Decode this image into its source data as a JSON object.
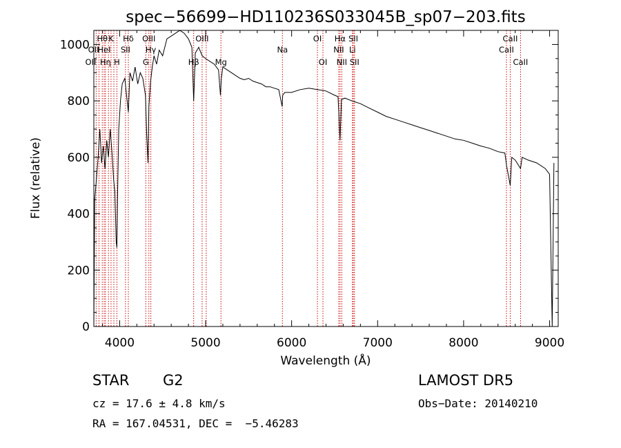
{
  "chart_data": {
    "type": "line",
    "title": "spec−56699−HD110236S033045B_sp07−203.fits",
    "xlabel": "Wavelength (Å)",
    "ylabel": "Flux (relative)",
    "xlim": [
      3700,
      9100
    ],
    "ylim": [
      0,
      1050
    ],
    "x_ticks": [
      4000,
      5000,
      6000,
      7000,
      8000,
      9000
    ],
    "y_ticks": [
      0,
      200,
      400,
      600,
      800,
      1000
    ],
    "grid": false,
    "colors": {
      "spectrum": "#000000",
      "line_markers": "#cc0000",
      "axes": "#000000"
    },
    "series": [
      {
        "x": [
          3700,
          3710,
          3730,
          3750,
          3770,
          3790,
          3810,
          3830,
          3850,
          3870,
          3890,
          3910,
          3930,
          3945,
          3960,
          3968,
          3975,
          3990,
          4010,
          4030,
          4060,
          4080,
          4101,
          4120,
          4150,
          4180,
          4210,
          4240,
          4270,
          4300,
          4315,
          4330,
          4340,
          4360,
          4380,
          4400,
          4430,
          4460,
          4500,
          4550,
          4600,
          4650,
          4700,
          4750,
          4800,
          4840,
          4861,
          4880,
          4920,
          4960,
          5000,
          5050,
          5100,
          5150,
          5172,
          5183,
          5200,
          5250,
          5300,
          5350,
          5400,
          5450,
          5500,
          5550,
          5600,
          5650,
          5700,
          5750,
          5800,
          5850,
          5890,
          5896,
          5920,
          6000,
          6100,
          6200,
          6300,
          6400,
          6500,
          6540,
          6563,
          6580,
          6620,
          6700,
          6800,
          6900,
          7000,
          7100,
          7200,
          7300,
          7400,
          7500,
          7600,
          7700,
          7800,
          7900,
          8000,
          8100,
          8200,
          8300,
          8400,
          8480,
          8500,
          8542,
          8560,
          8600,
          8662,
          8680,
          8750,
          8850,
          8950,
          9000,
          9030,
          9050
        ],
        "y": [
          0,
          450,
          520,
          600,
          700,
          580,
          640,
          560,
          660,
          600,
          700,
          620,
          520,
          480,
          300,
          280,
          450,
          700,
          800,
          860,
          880,
          820,
          760,
          900,
          870,
          920,
          860,
          900,
          880,
          820,
          680,
          580,
          780,
          870,
          920,
          960,
          930,
          980,
          960,
          1020,
          1030,
          1040,
          1050,
          1040,
          1020,
          990,
          800,
          970,
          990,
          960,
          950,
          940,
          930,
          910,
          820,
          880,
          920,
          910,
          900,
          890,
          880,
          875,
          880,
          870,
          865,
          860,
          850,
          850,
          845,
          840,
          780,
          820,
          830,
          830,
          840,
          845,
          840,
          835,
          820,
          815,
          660,
          805,
          810,
          800,
          790,
          775,
          760,
          745,
          735,
          725,
          715,
          705,
          695,
          685,
          675,
          665,
          660,
          650,
          640,
          632,
          620,
          615,
          570,
          500,
          600,
          590,
          560,
          600,
          590,
          580,
          560,
          540,
          0,
          580
        ]
      }
    ],
    "spectral_lines": [
      {
        "x": 3727,
        "label": "OII",
        "row": 2,
        "anchor": "end"
      },
      {
        "x": 3760,
        "label": "OII",
        "row": 1,
        "anchor": "end"
      },
      {
        "x": 3798,
        "label": "Hθ",
        "row": 0,
        "anchor": "middle"
      },
      {
        "x": 3820,
        "label": "HeI",
        "row": 1,
        "anchor": "middle"
      },
      {
        "x": 3835,
        "label": "Hη",
        "row": 2,
        "anchor": "middle"
      },
      {
        "x": 3870,
        "label": "",
        "row": 0,
        "anchor": "middle"
      },
      {
        "x": 3900,
        "label": "K",
        "row": 0,
        "anchor": "middle"
      },
      {
        "x": 3933,
        "label": "",
        "row": 0,
        "anchor": "middle"
      },
      {
        "x": 3968,
        "label": "H",
        "row": 2,
        "anchor": "middle"
      },
      {
        "x": 4068,
        "label": "SII",
        "row": 1,
        "anchor": "middle"
      },
      {
        "x": 4101,
        "label": "Hδ",
        "row": 0,
        "anchor": "middle"
      },
      {
        "x": 4304,
        "label": "G",
        "row": 2,
        "anchor": "middle"
      },
      {
        "x": 4340,
        "label": "OIII",
        "row": 0,
        "anchor": "middle"
      },
      {
        "x": 4363,
        "label": "Hγ",
        "row": 1,
        "anchor": "middle"
      },
      {
        "x": 4861,
        "label": "Hβ",
        "row": 2,
        "anchor": "middle"
      },
      {
        "x": 4959,
        "label": "OIII",
        "row": 0,
        "anchor": "middle"
      },
      {
        "x": 5007,
        "label": "",
        "row": 0,
        "anchor": "middle"
      },
      {
        "x": 5178,
        "label": "Mg",
        "row": 2,
        "anchor": "middle"
      },
      {
        "x": 5893,
        "label": "Na",
        "row": 1,
        "anchor": "middle"
      },
      {
        "x": 6300,
        "label": "OI",
        "row": 0,
        "anchor": "middle"
      },
      {
        "x": 6364,
        "label": "OI",
        "row": 2,
        "anchor": "middle"
      },
      {
        "x": 6548,
        "label": "NII",
        "row": 1,
        "anchor": "middle"
      },
      {
        "x": 6563,
        "label": "Hα",
        "row": 0,
        "anchor": "middle"
      },
      {
        "x": 6583,
        "label": "NII",
        "row": 2,
        "anchor": "middle"
      },
      {
        "x": 6707,
        "label": "Li",
        "row": 1,
        "anchor": "middle"
      },
      {
        "x": 6717,
        "label": "SII",
        "row": 0,
        "anchor": "middle"
      },
      {
        "x": 6731,
        "label": "SII",
        "row": 2,
        "anchor": "middle"
      },
      {
        "x": 8498,
        "label": "CaII",
        "row": 1,
        "anchor": "middle"
      },
      {
        "x": 8542,
        "label": "CaII",
        "row": 0,
        "anchor": "middle"
      },
      {
        "x": 8662,
        "label": "CaII",
        "row": 2,
        "anchor": "middle"
      }
    ]
  },
  "info": {
    "object_class": "STAR",
    "subclass": "G2",
    "cz": "cz = 17.6 ± 4.8 km/s",
    "radec": "RA = 167.04531, DEC =  −5.46283",
    "survey": "LAMOST DR5",
    "obs_date": "Obs−Date: 20140210"
  }
}
